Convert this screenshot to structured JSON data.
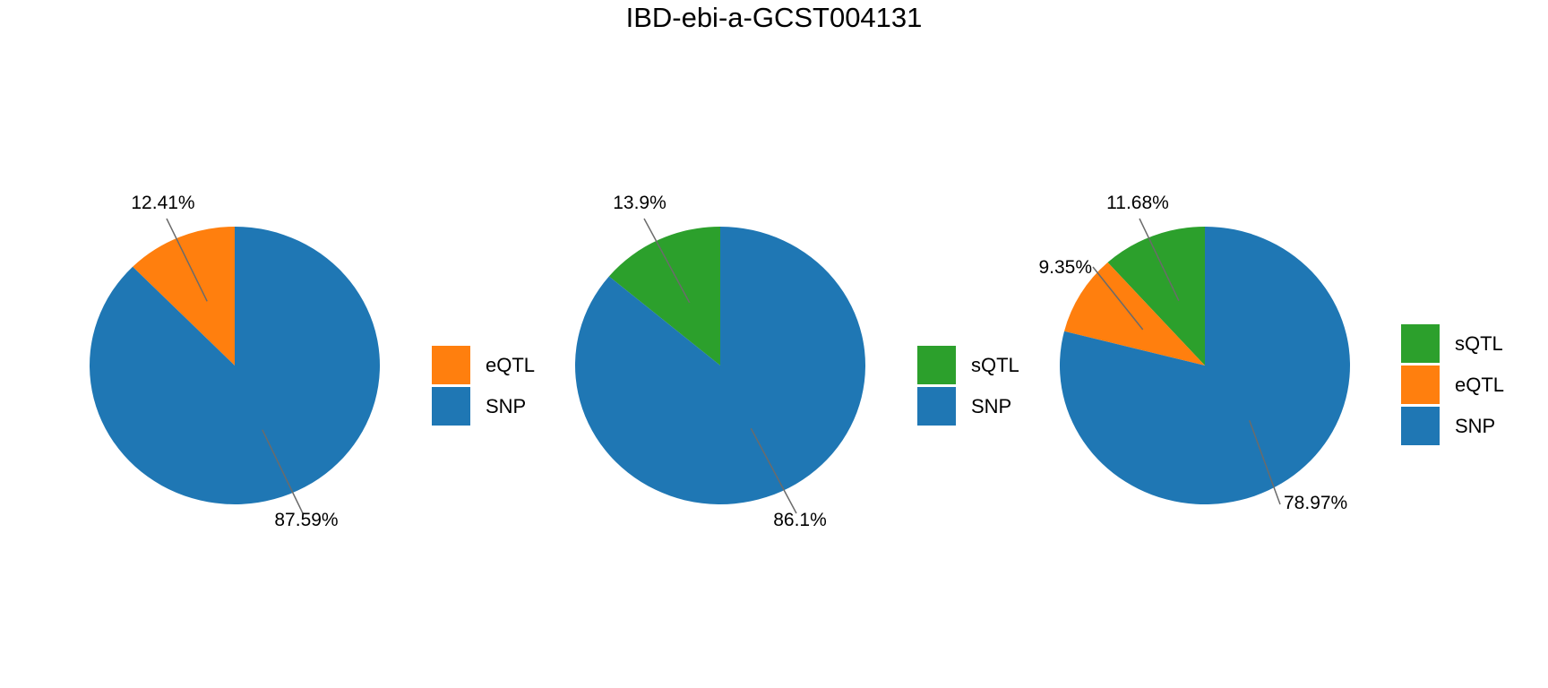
{
  "title": "IBD-ebi-a-GCST004131",
  "chart_data": [
    {
      "type": "pie",
      "slices": [
        {
          "name": "eQTL",
          "value": 12.41,
          "label": "12.41%",
          "color": "#ff7f0e"
        },
        {
          "name": "SNP",
          "value": 87.59,
          "label": "87.59%",
          "color": "#1f77b4"
        }
      ],
      "legend": [
        "eQTL",
        "SNP"
      ],
      "legend_position": "right"
    },
    {
      "type": "pie",
      "slices": [
        {
          "name": "sQTL",
          "value": 13.9,
          "label": "13.9%",
          "color": "#2ca02c"
        },
        {
          "name": "SNP",
          "value": 86.1,
          "label": "86.1%",
          "color": "#1f77b4"
        }
      ],
      "legend": [
        "sQTL",
        "SNP"
      ],
      "legend_position": "right"
    },
    {
      "type": "pie",
      "slices": [
        {
          "name": "sQTL",
          "value": 11.68,
          "label": "11.68%",
          "color": "#2ca02c"
        },
        {
          "name": "eQTL",
          "value": 9.35,
          "label": "9.35%",
          "color": "#ff7f0e"
        },
        {
          "name": "SNP",
          "value": 78.97,
          "label": "78.97%",
          "color": "#1f77b4"
        }
      ],
      "legend": [
        "sQTL",
        "eQTL",
        "SNP"
      ],
      "legend_position": "right"
    }
  ]
}
